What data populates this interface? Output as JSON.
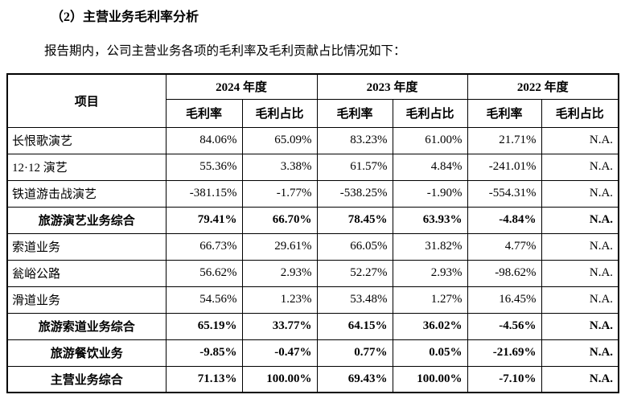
{
  "page": {
    "title": "（2）主营业务毛利率分析",
    "intro": "报告期内，公司主营业务各项的毛利率及毛利贡献占比情况如下："
  },
  "table": {
    "item_header": "项目",
    "year_groups": [
      {
        "year": "2024 年度",
        "sub": [
          "毛利率",
          "毛利占比"
        ]
      },
      {
        "year": "2023 年度",
        "sub": [
          "毛利率",
          "毛利占比"
        ]
      },
      {
        "year": "2022 年度",
        "sub": [
          "毛利率",
          "毛利占比"
        ]
      }
    ],
    "rows": [
      {
        "name": "长恨歌演艺",
        "bold": false,
        "values": [
          "84.06%",
          "65.09%",
          "83.23%",
          "61.00%",
          "21.71%",
          "N.A."
        ]
      },
      {
        "name": "12·12 演艺",
        "bold": false,
        "values": [
          "55.36%",
          "3.38%",
          "61.57%",
          "4.84%",
          "-241.01%",
          "N.A."
        ]
      },
      {
        "name": "铁道游击战演艺",
        "bold": false,
        "values": [
          "-381.15%",
          "-1.77%",
          "-538.25%",
          "-1.90%",
          "-554.31%",
          "N.A."
        ]
      },
      {
        "name": "旅游演艺业务综合",
        "bold": true,
        "values": [
          "79.41%",
          "66.70%",
          "78.45%",
          "63.93%",
          "-4.84%",
          "N.A."
        ]
      },
      {
        "name": "索道业务",
        "bold": false,
        "values": [
          "66.73%",
          "29.61%",
          "66.05%",
          "31.82%",
          "4.77%",
          "N.A."
        ]
      },
      {
        "name": "瓮峪公路",
        "bold": false,
        "values": [
          "56.62%",
          "2.93%",
          "52.27%",
          "2.93%",
          "-98.62%",
          "N.A."
        ]
      },
      {
        "name": "滑道业务",
        "bold": false,
        "values": [
          "54.56%",
          "1.23%",
          "53.48%",
          "1.27%",
          "16.45%",
          "N.A."
        ]
      },
      {
        "name": "旅游索道业务综合",
        "bold": true,
        "values": [
          "65.19%",
          "33.77%",
          "64.15%",
          "36.02%",
          "-4.56%",
          "N.A."
        ]
      },
      {
        "name": "旅游餐饮业务",
        "bold": true,
        "values": [
          "-9.85%",
          "-0.47%",
          "0.77%",
          "0.05%",
          "-21.69%",
          "N.A."
        ]
      },
      {
        "name": "主营业务综合",
        "bold": true,
        "values": [
          "71.13%",
          "100.00%",
          "69.43%",
          "100.00%",
          "-7.10%",
          "N.A."
        ]
      }
    ]
  }
}
